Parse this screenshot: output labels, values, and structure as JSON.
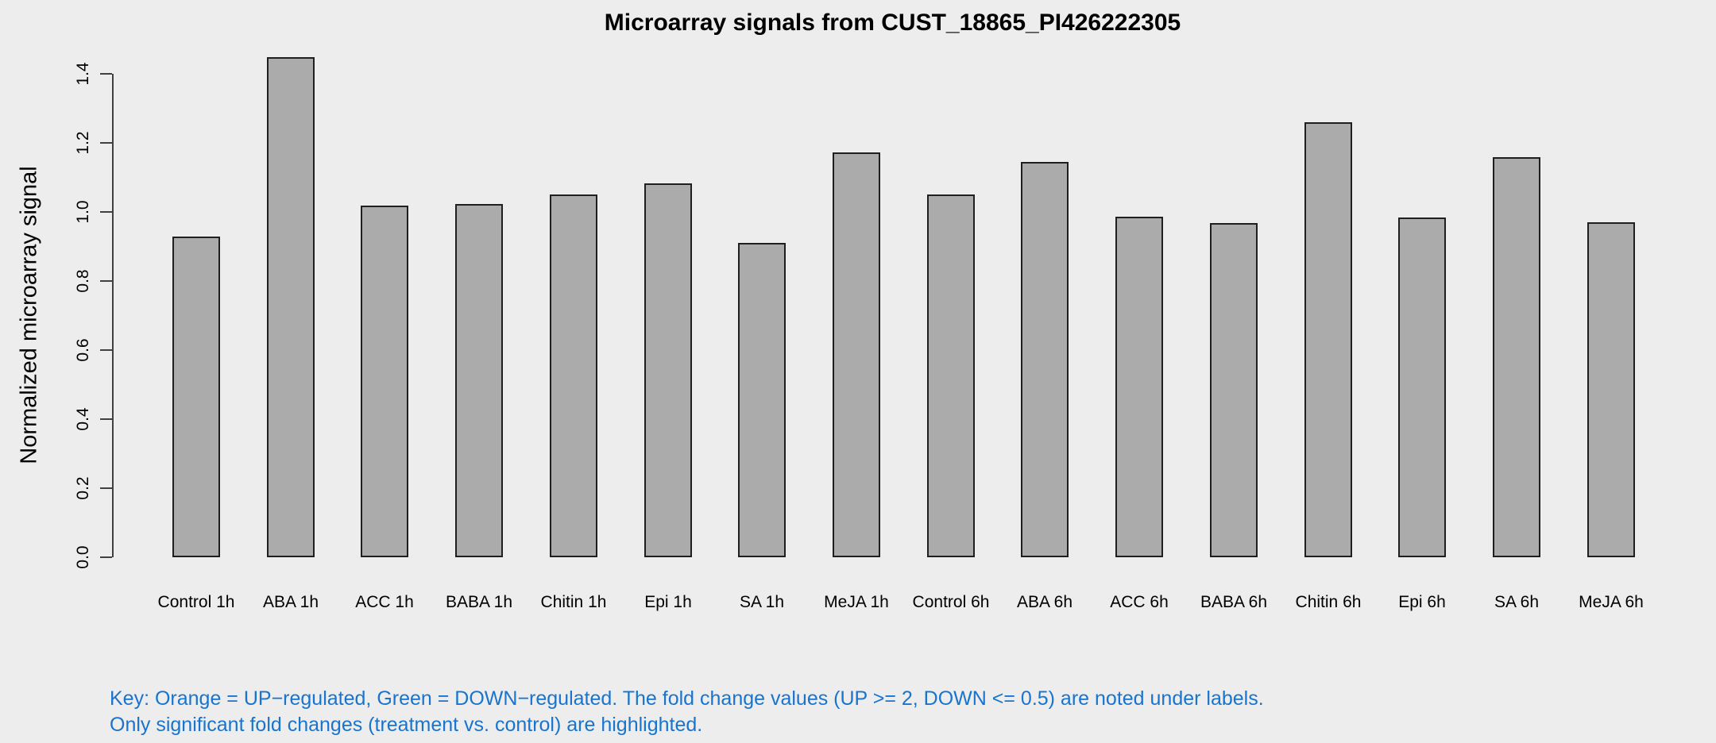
{
  "chart_data": {
    "type": "bar",
    "title": "Microarray signals from CUST_18865_PI426222305",
    "xlabel": "",
    "ylabel": "Normalized microarray signal",
    "categories": [
      "Control 1h",
      "ABA 1h",
      "ACC 1h",
      "BABA 1h",
      "Chitin 1h",
      "Epi 1h",
      "SA 1h",
      "MeJA 1h",
      "Control 6h",
      "ABA 6h",
      "ACC 6h",
      "BABA 6h",
      "Chitin 6h",
      "Epi 6h",
      "SA 6h",
      "MeJA 6h"
    ],
    "values": [
      0.929,
      1.448,
      1.018,
      1.023,
      1.05,
      1.083,
      0.91,
      1.172,
      1.05,
      1.145,
      0.986,
      0.968,
      1.26,
      0.984,
      1.159,
      0.971
    ],
    "ylim": [
      0,
      1.4
    ],
    "yticks": [
      0.0,
      0.2,
      0.4,
      0.6,
      0.8,
      1.0,
      1.2,
      1.4
    ],
    "ytick_labels": [
      "0.0",
      "0.2",
      "0.4",
      "0.6",
      "0.8",
      "1.0",
      "1.2",
      "1.4"
    ],
    "grid": false,
    "legend": "none",
    "bar_color": "#ABABAB",
    "bar_border_color": "#1F1F1F"
  },
  "colors": {
    "background": "#EDEDED",
    "axis": "#404040",
    "text": "#000000",
    "footnote_blue": "#1874CD"
  },
  "footnote": {
    "line1": "Key: Orange = UP−regulated, Green = DOWN−regulated. The fold change values (UP >= 2, DOWN <= 0.5) are noted under labels.",
    "line2": "Only significant fold changes (treatment vs. control) are highlighted."
  }
}
